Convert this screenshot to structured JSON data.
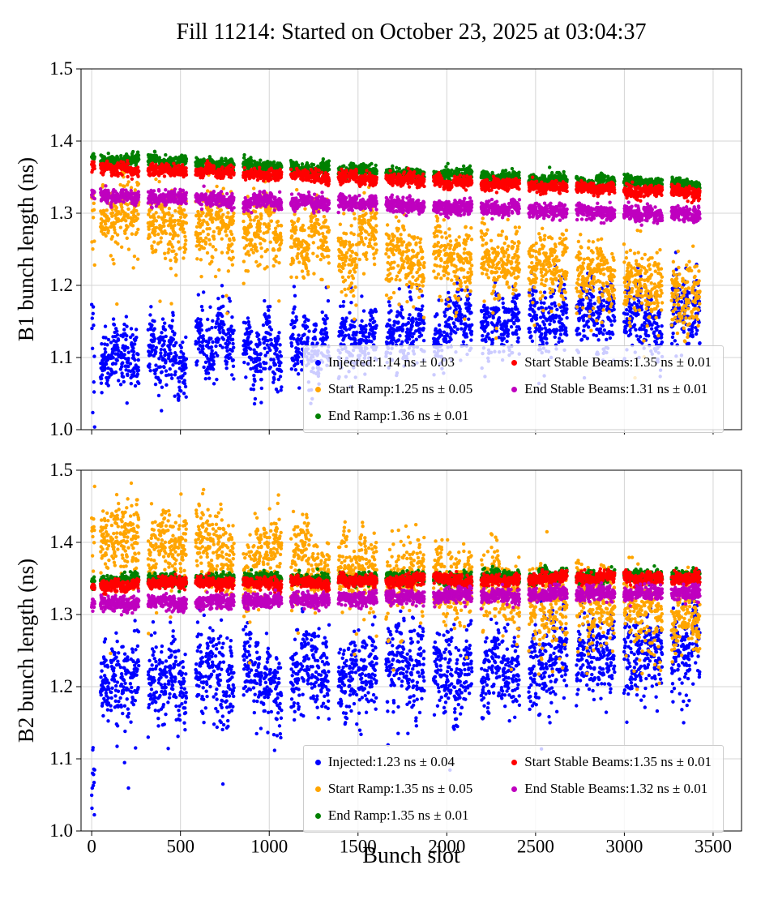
{
  "figure": {
    "title": "Fill 11214: Started on October 23, 2025 at 03:04:37",
    "xlabel": "Bunch slot"
  },
  "chart_data": [
    {
      "type": "scatter",
      "subplot": "B1",
      "ylabel": "B1 bunch length (ns)",
      "xlim": [
        -60,
        3660
      ],
      "ylim": [
        1.0,
        1.5
      ],
      "xticks": [
        0,
        500,
        1000,
        1500,
        2000,
        2500,
        3000,
        3500
      ],
      "yticks": [
        1.0,
        1.1,
        1.2,
        1.3,
        1.4,
        1.5
      ],
      "show_xtick_labels": false,
      "grid": true,
      "legend_location": "lower right inside",
      "legend_columns": 2,
      "series": [
        {
          "name": "Injected",
          "legend_label": "Injected:1.14 ns ± 0.03",
          "color": "#0000ff",
          "mean_ns": 1.14,
          "std_ns": 0.03,
          "trend_start": 1.1,
          "trend_end": 1.16,
          "scatter_sd": 0.022,
          "train_arch": 0.025,
          "train_jitter": 0.01,
          "outlier_rate": 0.012,
          "outlier_depth": 0.06,
          "startup_column": true,
          "startup_low": 1.0,
          "startup_high": 1.2
        },
        {
          "name": "Start Ramp",
          "legend_label": "Start Ramp:1.25 ns ± 0.05",
          "color": "#ffa500",
          "mean_ns": 1.25,
          "std_ns": 0.05,
          "trend_start": 1.305,
          "trend_end": 1.195,
          "scatter_sd": 0.022,
          "train_arch": 0,
          "train_jitter": 0.012,
          "outlier_rate": 0.1,
          "outlier_depth": 0.07,
          "startup_column": false,
          "startup_low": 0,
          "startup_high": 0
        },
        {
          "name": "End Ramp",
          "legend_label": "End Ramp:1.36 ns ± 0.01",
          "color": "#008000",
          "mean_ns": 1.36,
          "std_ns": 0.01,
          "trend_start": 1.376,
          "trend_end": 1.337,
          "scatter_sd": 0.004,
          "train_arch": 0,
          "train_jitter": 0.002,
          "outlier_rate": 0,
          "outlier_depth": 0,
          "startup_column": false,
          "startup_low": 0,
          "startup_high": 0
        },
        {
          "name": "Start Stable Beams",
          "legend_label": "Start Stable Beams:1.35 ns ± 0.01",
          "color": "#ff0000",
          "mean_ns": 1.35,
          "std_ns": 0.01,
          "trend_start": 1.364,
          "trend_end": 1.328,
          "scatter_sd": 0.004,
          "train_arch": 0,
          "train_jitter": 0.002,
          "outlier_rate": 0,
          "outlier_depth": 0,
          "startup_column": false,
          "startup_low": 0,
          "startup_high": 0
        },
        {
          "name": "End Stable Beams",
          "legend_label": "End Stable Beams:1.31 ns ± 0.01",
          "color": "#bf00bf",
          "mean_ns": 1.31,
          "std_ns": 0.01,
          "trend_start": 1.325,
          "trend_end": 1.297,
          "scatter_sd": 0.005,
          "train_arch": 0,
          "train_jitter": 0.002,
          "outlier_rate": 0,
          "outlier_depth": 0,
          "startup_column": false,
          "startup_low": 0,
          "startup_high": 0
        }
      ]
    },
    {
      "type": "scatter",
      "subplot": "B2",
      "ylabel": "B2 bunch length (ns)",
      "xlabel": "Bunch slot",
      "xlim": [
        -60,
        3660
      ],
      "ylim": [
        1.0,
        1.5
      ],
      "xticks": [
        0,
        500,
        1000,
        1500,
        2000,
        2500,
        3000,
        3500
      ],
      "yticks": [
        1.0,
        1.1,
        1.2,
        1.3,
        1.4,
        1.5
      ],
      "show_xtick_labels": true,
      "grid": true,
      "legend_location": "lower right inside",
      "legend_columns": 2,
      "series": [
        {
          "name": "Injected",
          "legend_label": "Injected:1.23 ns ± 0.04",
          "color": "#0000ff",
          "mean_ns": 1.23,
          "std_ns": 0.04,
          "trend_start": 1.205,
          "trend_end": 1.245,
          "scatter_sd": 0.03,
          "train_arch": 0.02,
          "train_jitter": 0.012,
          "outlier_rate": 0.015,
          "outlier_depth": 0.1,
          "startup_column": true,
          "startup_low": 1.0,
          "startup_high": 1.12
        },
        {
          "name": "Start Ramp",
          "legend_label": "Start Ramp:1.35 ns ± 0.05",
          "color": "#ffa500",
          "mean_ns": 1.35,
          "std_ns": 0.05,
          "trend_start": 1.41,
          "trend_end": 1.3,
          "scatter_sd": 0.025,
          "train_arch": 0,
          "train_jitter": 0.012,
          "outlier_rate": 0.06,
          "outlier_depth": 0.08,
          "startup_column": false,
          "startup_low": 0,
          "startup_high": 0
        },
        {
          "name": "End Ramp",
          "legend_label": "End Ramp:1.35 ns ± 0.01",
          "color": "#008000",
          "mean_ns": 1.35,
          "std_ns": 0.01,
          "trend_start": 1.347,
          "trend_end": 1.353,
          "scatter_sd": 0.004,
          "train_arch": 0,
          "train_jitter": 0.002,
          "outlier_rate": 0,
          "outlier_depth": 0,
          "startup_column": false,
          "startup_low": 0,
          "startup_high": 0
        },
        {
          "name": "Start Stable Beams",
          "legend_label": "Start Stable Beams:1.35 ns ± 0.01",
          "color": "#ff0000",
          "mean_ns": 1.35,
          "std_ns": 0.01,
          "trend_start": 1.341,
          "trend_end": 1.352,
          "scatter_sd": 0.004,
          "train_arch": 0,
          "train_jitter": 0.002,
          "outlier_rate": 0,
          "outlier_depth": 0,
          "startup_column": false,
          "startup_low": 0,
          "startup_high": 0
        },
        {
          "name": "End Stable Beams",
          "legend_label": "End Stable Beams:1.32 ns ± 0.01",
          "color": "#bf00bf",
          "mean_ns": 1.32,
          "std_ns": 0.01,
          "trend_start": 1.316,
          "trend_end": 1.331,
          "scatter_sd": 0.005,
          "train_arch": 0,
          "train_jitter": 0.002,
          "outlier_rate": 0,
          "outlier_depth": 0,
          "startup_column": false,
          "startup_low": 0,
          "startup_high": 0
        }
      ]
    }
  ]
}
